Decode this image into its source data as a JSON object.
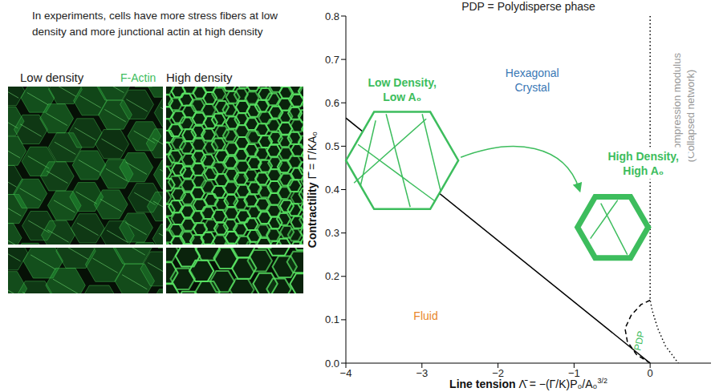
{
  "caption": [
    "In experiments, cells have more stress fibers at low",
    "density and more junctional actin at high density"
  ],
  "panels": {
    "left_label": "Low density",
    "stain": "F-Actin",
    "right_label": "High density",
    "stain_color": "#3dbd5d"
  },
  "chart_data": {
    "type": "line",
    "title": "PDP = Polydisperse phase",
    "xlabel": {
      "bold": "Line tension",
      "math": "Λ̄ = −(Γ/K)P₀/A₀",
      "superscript": "3/2"
    },
    "ylabel": {
      "bold": "Contractility",
      "math": "Γ̄ = Γ/KA₀"
    },
    "xlim": [
      -4,
      0.8
    ],
    "ylim": [
      0,
      0.8
    ],
    "xticks": [
      {
        "value": -4,
        "label": "−4"
      },
      {
        "value": -3,
        "label": "−3"
      },
      {
        "value": -2,
        "label": "−2"
      },
      {
        "value": -1,
        "label": "−1"
      },
      0
    ],
    "yticks": [
      {
        "value": 0,
        "label": "0.0"
      },
      0.1,
      0.2,
      0.3,
      0.4,
      0.5,
      0.6,
      0.7,
      0.8
    ],
    "grid": false,
    "series": [
      {
        "color": "#000000",
        "line_style": "solid",
        "x": [
          -4,
          0
        ],
        "values": [
          0.565,
          0
        ]
      },
      {
        "color": "#000000",
        "line_style": "dashed",
        "x": [
          0,
          -0.12,
          -0.25,
          -0.33,
          -0.3,
          -0.18,
          0
        ],
        "values": [
          0.145,
          0.135,
          0.11,
          0.08,
          0.05,
          0.02,
          0
        ]
      },
      {
        "color": "#000000",
        "line_style": "dotted",
        "x": [
          0,
          0,
          0.03,
          0.1,
          0.2,
          0.37
        ],
        "values": [
          0.8,
          0.145,
          0.12,
          0.08,
          0.04,
          0
        ]
      }
    ],
    "annotations": {
      "crystal": {
        "text": [
          "Hexagonal",
          "Crystal"
        ],
        "color": "#3a78b5"
      },
      "fluid": {
        "text": [
          "Fluid"
        ],
        "color": "#e8862a"
      },
      "pdp": {
        "text": [
          "PDP"
        ],
        "color": "#3dbd5d"
      },
      "zero_modulus": {
        "text": [
          "Zero compression modulus",
          "(Collapsed network)"
        ],
        "color": "#999999"
      },
      "low": {
        "text": [
          "Low Density,",
          "Low A₀"
        ],
        "color": "#3dbd5d"
      },
      "high": {
        "text": [
          "High Density,",
          "High A₀"
        ],
        "color": "#3dbd5d"
      }
    }
  }
}
